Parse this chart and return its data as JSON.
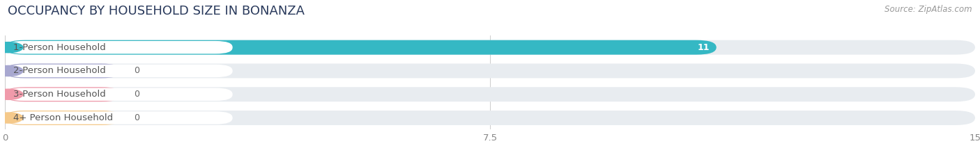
{
  "title": "OCCUPANCY BY HOUSEHOLD SIZE IN BONANZA",
  "source": "Source: ZipAtlas.com",
  "categories": [
    "1-Person Household",
    "2-Person Household",
    "3-Person Household",
    "4+ Person Household"
  ],
  "values": [
    11,
    0,
    0,
    0
  ],
  "bar_colors": [
    "#35b8c4",
    "#a8a8d0",
    "#f09aaa",
    "#f5c98a"
  ],
  "background_color": "#ffffff",
  "bar_bg_color": "#e8ecf0",
  "row_bg_color": "#f2f5f8",
  "xlim": [
    0,
    15
  ],
  "xticks": [
    0,
    7.5,
    15
  ],
  "title_fontsize": 13,
  "label_fontsize": 9.5,
  "value_fontsize": 9,
  "source_fontsize": 8.5,
  "title_color": "#2a3a5c",
  "label_color": "#555555",
  "tick_color": "#888888",
  "value_color_inside": "#ffffff",
  "value_color_outside": "#666666",
  "source_color": "#999999"
}
